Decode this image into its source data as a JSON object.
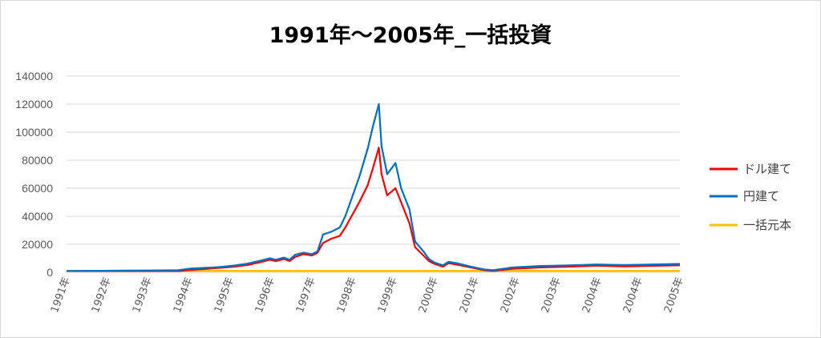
{
  "chart_data": {
    "type": "line",
    "title": "1991年～2005年_一括投資",
    "xlabel": "",
    "ylabel": "",
    "ylim": [
      0,
      140000
    ],
    "y_ticks": [
      "0",
      "20000",
      "40000",
      "60000",
      "80000",
      "100000",
      "120000",
      "140000"
    ],
    "x_ticks": [
      "1991年",
      "1992年",
      "1993年",
      "1994年",
      "1995年",
      "1996年",
      "1997年",
      "1998年",
      "1999年",
      "2000年",
      "2001年",
      "2002年",
      "2003年",
      "2004年",
      "2004年",
      "2005年"
    ],
    "grid": true,
    "legend_position": "right",
    "series": [
      {
        "name": "ドル建て",
        "color": "#ff0000",
        "values": [
          [
            0,
            500
          ],
          [
            1,
            550
          ],
          [
            2,
            600
          ],
          [
            3,
            650
          ],
          [
            4,
            850
          ],
          [
            4.5,
            1800
          ],
          [
            5,
            2400
          ],
          [
            5.5,
            3200
          ],
          [
            6,
            4000
          ],
          [
            6.5,
            5200
          ],
          [
            7,
            7500
          ],
          [
            7.3,
            9000
          ],
          [
            7.5,
            8000
          ],
          [
            7.8,
            9500
          ],
          [
            8,
            8000
          ],
          [
            8.2,
            11000
          ],
          [
            8.5,
            13000
          ],
          [
            8.8,
            12000
          ],
          [
            9,
            14000
          ],
          [
            9.2,
            21000
          ],
          [
            9.5,
            24000
          ],
          [
            9.8,
            26000
          ],
          [
            10,
            32000
          ],
          [
            10.5,
            50000
          ],
          [
            10.8,
            62000
          ],
          [
            11,
            75000
          ],
          [
            11.2,
            89000
          ],
          [
            11.3,
            70000
          ],
          [
            11.5,
            55000
          ],
          [
            11.8,
            60000
          ],
          [
            12,
            50000
          ],
          [
            12.3,
            35000
          ],
          [
            12.5,
            18000
          ],
          [
            12.8,
            12000
          ],
          [
            13,
            8000
          ],
          [
            13.2,
            6000
          ],
          [
            13.5,
            4000
          ],
          [
            13.7,
            6500
          ],
          [
            14,
            5500
          ],
          [
            14.5,
            3500
          ],
          [
            15,
            1500
          ],
          [
            15.3,
            1000
          ],
          [
            16,
            2500
          ],
          [
            17,
            3500
          ],
          [
            18,
            4000
          ],
          [
            19,
            4800
          ],
          [
            20,
            4200
          ],
          [
            21,
            4600
          ],
          [
            22,
            5000
          ]
        ]
      },
      {
        "name": "円建て",
        "color": "#0070c0",
        "values": [
          [
            0,
            1000
          ],
          [
            1,
            1100
          ],
          [
            2,
            1200
          ],
          [
            3,
            1300
          ],
          [
            4,
            1500
          ],
          [
            4.5,
            2800
          ],
          [
            5,
            3200
          ],
          [
            5.5,
            3800
          ],
          [
            6,
            4800
          ],
          [
            6.5,
            6200
          ],
          [
            7,
            8500
          ],
          [
            7.3,
            10000
          ],
          [
            7.5,
            9000
          ],
          [
            7.8,
            10500
          ],
          [
            8,
            9000
          ],
          [
            8.2,
            12500
          ],
          [
            8.5,
            14000
          ],
          [
            8.8,
            13000
          ],
          [
            9,
            15000
          ],
          [
            9.2,
            27000
          ],
          [
            9.5,
            29000
          ],
          [
            9.8,
            32000
          ],
          [
            10,
            40000
          ],
          [
            10.5,
            68000
          ],
          [
            10.8,
            88000
          ],
          [
            11,
            105000
          ],
          [
            11.2,
            120000
          ],
          [
            11.3,
            90000
          ],
          [
            11.5,
            70000
          ],
          [
            11.8,
            78000
          ],
          [
            12,
            60000
          ],
          [
            12.3,
            45000
          ],
          [
            12.5,
            22000
          ],
          [
            12.8,
            15000
          ],
          [
            13,
            9500
          ],
          [
            13.2,
            7000
          ],
          [
            13.5,
            5000
          ],
          [
            13.7,
            7500
          ],
          [
            14,
            6500
          ],
          [
            14.5,
            4000
          ],
          [
            15,
            2000
          ],
          [
            15.3,
            1500
          ],
          [
            16,
            3500
          ],
          [
            17,
            4500
          ],
          [
            18,
            5000
          ],
          [
            19,
            5600
          ],
          [
            20,
            5200
          ],
          [
            21,
            5600
          ],
          [
            22,
            6000
          ]
        ]
      },
      {
        "name": "一括元本",
        "color": "#ffc000",
        "values": [
          [
            0,
            1000
          ],
          [
            22,
            1000
          ]
        ]
      }
    ]
  }
}
